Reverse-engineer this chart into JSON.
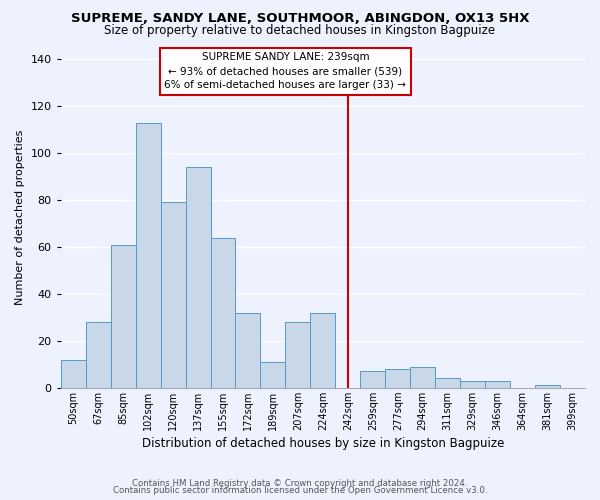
{
  "title1": "SUPREME, SANDY LANE, SOUTHMOOR, ABINGDON, OX13 5HX",
  "title2": "Size of property relative to detached houses in Kingston Bagpuize",
  "xlabel": "Distribution of detached houses by size in Kingston Bagpuize",
  "ylabel": "Number of detached properties",
  "footer1": "Contains HM Land Registry data © Crown copyright and database right 2024.",
  "footer2": "Contains public sector information licensed under the Open Government Licence v3.0.",
  "bin_labels": [
    "50sqm",
    "67sqm",
    "85sqm",
    "102sqm",
    "120sqm",
    "137sqm",
    "155sqm",
    "172sqm",
    "189sqm",
    "207sqm",
    "224sqm",
    "242sqm",
    "259sqm",
    "277sqm",
    "294sqm",
    "311sqm",
    "329sqm",
    "346sqm",
    "364sqm",
    "381sqm",
    "399sqm"
  ],
  "bar_values": [
    12,
    28,
    61,
    113,
    79,
    94,
    64,
    32,
    11,
    28,
    32,
    0,
    7,
    8,
    9,
    4,
    3,
    3,
    0,
    1,
    0
  ],
  "bar_color": "#c8d8e8",
  "bar_edge_color": "#5599cc",
  "vline_x_index": 11.0,
  "vline_color": "#cc0000",
  "annotation_title": "SUPREME SANDY LANE: 239sqm",
  "annotation_line1": "← 93% of detached houses are smaller (539)",
  "annotation_line2": "6% of semi-detached houses are larger (33) →",
  "annotation_box_color": "#ffffff",
  "annotation_box_edge_color": "#cc0000",
  "ylim": [
    0,
    145
  ],
  "background_color": "#eef2ff",
  "grid_color": "#ffffff",
  "title1_fontsize": 9.5,
  "title2_fontsize": 8.5,
  "xlabel_fontsize": 8.5,
  "ylabel_fontsize": 8,
  "annotation_fontsize": 7.5,
  "footer_fontsize": 6.2
}
